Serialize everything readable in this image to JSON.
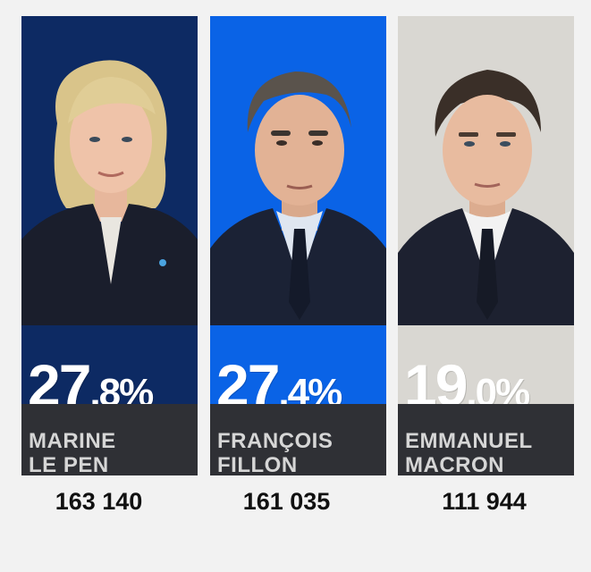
{
  "candidates": [
    {
      "first_name": "MARINE",
      "last_name": "LE PEN",
      "percent_whole": "27",
      "percent_decimal": ",8",
      "percent_sign": "%",
      "votes": "163 140",
      "panel_color": "#0d2a63"
    },
    {
      "first_name": "FRANÇOIS",
      "last_name": "FILLON",
      "percent_whole": "27",
      "percent_decimal": ",4",
      "percent_sign": "%",
      "votes": "161 035",
      "panel_color": "#0a63e6"
    },
    {
      "first_name": "EMMANUEL",
      "last_name": "MACRON",
      "percent_whole": "19",
      "percent_decimal": ",0",
      "percent_sign": "%",
      "votes": "111 944",
      "panel_color": "#d9d7d2"
    }
  ],
  "colors": {
    "name_band": "#2f3035",
    "page_background": "#f2f2f2"
  }
}
